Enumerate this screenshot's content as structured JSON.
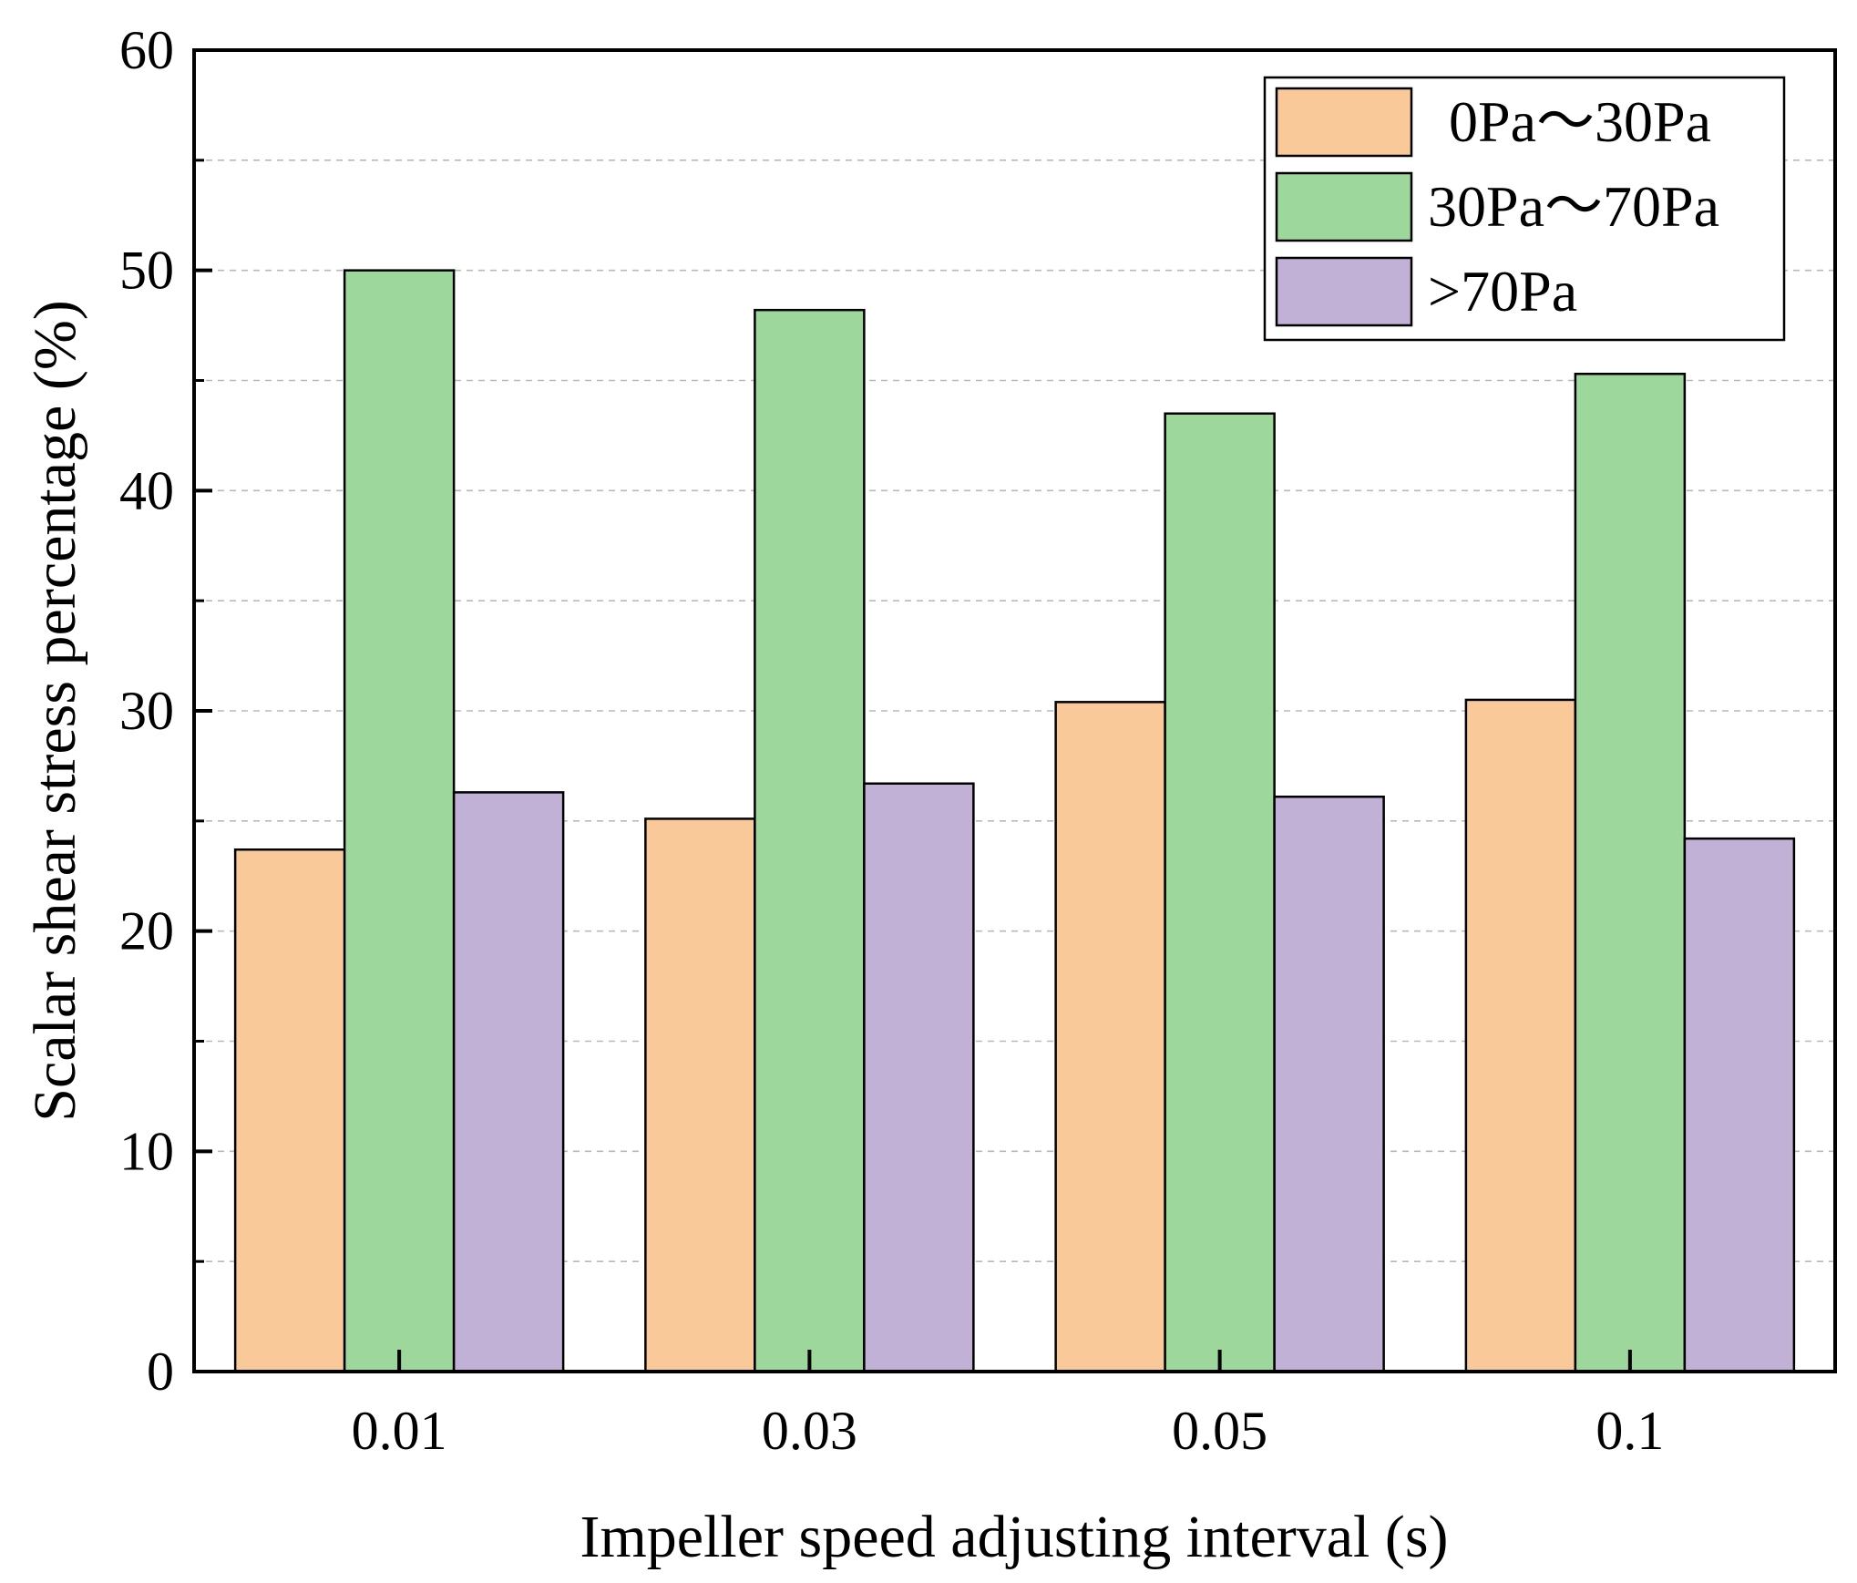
{
  "chart_data": {
    "type": "bar",
    "title": "",
    "xlabel": "Impeller speed adjusting interval (s)",
    "ylabel": "Scalar shear stress percentage (%)",
    "ylim": [
      0,
      60
    ],
    "yticks": [
      0,
      10,
      20,
      30,
      40,
      50,
      60
    ],
    "grid": true,
    "legend_position": "top-right",
    "categories": [
      "0.01",
      "0.03",
      "0.05",
      "0.1"
    ],
    "series": [
      {
        "name": "0Pa～30Pa",
        "color": "#F9C999",
        "values": [
          23.7,
          25.1,
          30.4,
          30.5
        ]
      },
      {
        "name": "30Pa～70Pa",
        "color": "#9DD79B",
        "values": [
          50.0,
          48.2,
          43.5,
          45.3
        ]
      },
      {
        "name": ">70Pa",
        "color": "#C2B1D6",
        "values": [
          26.3,
          26.7,
          26.1,
          24.2
        ]
      }
    ]
  }
}
